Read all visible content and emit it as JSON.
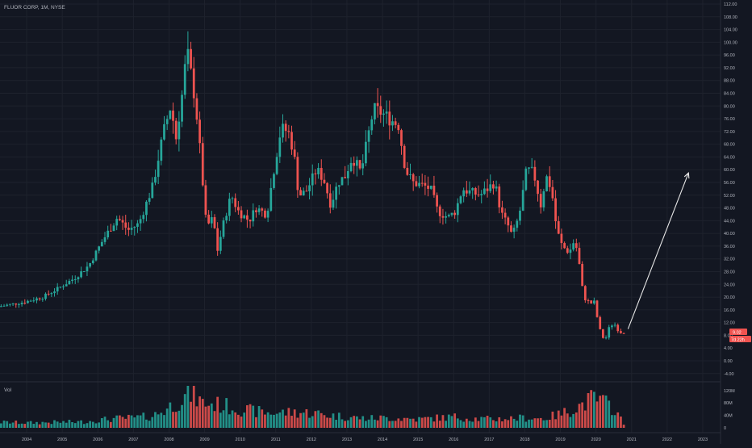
{
  "header": {
    "title": "FLUOR CORP, 1M, NYSE"
  },
  "volume_pane": {
    "label": "Vol",
    "ticks": [
      "120M",
      "80M",
      "40M",
      "0"
    ]
  },
  "price_badges": {
    "last": "9.02",
    "countdown": "7d 22h"
  },
  "colors": {
    "background": "#131722",
    "up": "#26a69a",
    "down": "#ef5350",
    "grid": "#1e222d",
    "text": "#b2b5be",
    "arrow": "#e6e6e6"
  },
  "chart_data": {
    "type": "candlestick",
    "title": "FLUOR CORP, 1M, NYSE",
    "interval": "1M",
    "exchange": "NYSE",
    "x_ticks": [
      "2004",
      "2005",
      "2006",
      "2007",
      "2008",
      "2009",
      "2010",
      "2011",
      "2012",
      "2013",
      "2014",
      "2015",
      "2016",
      "2017",
      "2018",
      "2019",
      "2020",
      "2021",
      "2022",
      "2023"
    ],
    "y_ticks": [
      "112.00",
      "108.00",
      "104.00",
      "100.00",
      "96.00",
      "92.00",
      "88.00",
      "84.00",
      "80.00",
      "76.00",
      "72.00",
      "68.00",
      "64.00",
      "60.00",
      "56.00",
      "52.00",
      "48.00",
      "44.00",
      "40.00",
      "36.00",
      "32.00",
      "28.00",
      "24.00",
      "20.00",
      "16.00",
      "12.00",
      "8.00",
      "4.00",
      "0.00",
      "-4.00"
    ],
    "y_range": [
      -6,
      112
    ],
    "x_range": [
      2003.25,
      2023.5
    ],
    "grid": true,
    "last_price": 9.02,
    "annotation_arrow": {
      "from": [
        2020.9,
        10
      ],
      "to": [
        2022.6,
        59
      ]
    },
    "price_path": [
      [
        2003.25,
        17
      ],
      [
        2004.0,
        18.5
      ],
      [
        2004.5,
        20
      ],
      [
        2004.9,
        22.5
      ],
      [
        2005.4,
        26
      ],
      [
        2005.8,
        30
      ],
      [
        2006.2,
        38
      ],
      [
        2006.6,
        45
      ],
      [
        2006.9,
        41
      ],
      [
        2007.2,
        43
      ],
      [
        2007.6,
        55
      ],
      [
        2007.9,
        72
      ],
      [
        2008.1,
        80
      ],
      [
        2008.25,
        70
      ],
      [
        2008.45,
        86
      ],
      [
        2008.55,
        98
      ],
      [
        2008.8,
        81
      ],
      [
        2009.0,
        56
      ],
      [
        2009.1,
        42
      ],
      [
        2009.3,
        45
      ],
      [
        2009.4,
        34
      ],
      [
        2009.6,
        44
      ],
      [
        2009.8,
        52
      ],
      [
        2010.0,
        47
      ],
      [
        2010.3,
        44
      ],
      [
        2010.5,
        48
      ],
      [
        2010.8,
        46
      ],
      [
        2011.0,
        60
      ],
      [
        2011.2,
        73
      ],
      [
        2011.4,
        72
      ],
      [
        2011.55,
        66
      ],
      [
        2011.7,
        52
      ],
      [
        2011.9,
        53
      ],
      [
        2012.2,
        60
      ],
      [
        2012.4,
        57
      ],
      [
        2012.6,
        49
      ],
      [
        2012.8,
        56
      ],
      [
        2013.0,
        58
      ],
      [
        2013.2,
        64
      ],
      [
        2013.45,
        59
      ],
      [
        2013.6,
        68
      ],
      [
        2013.8,
        79
      ],
      [
        2014.0,
        78
      ],
      [
        2014.25,
        76
      ],
      [
        2014.5,
        74
      ],
      [
        2014.7,
        60
      ],
      [
        2014.9,
        56
      ],
      [
        2015.2,
        55
      ],
      [
        2015.4,
        54
      ],
      [
        2015.6,
        47
      ],
      [
        2015.9,
        45
      ],
      [
        2016.1,
        47
      ],
      [
        2016.3,
        54
      ],
      [
        2016.5,
        53
      ],
      [
        2016.8,
        52
      ],
      [
        2017.0,
        54
      ],
      [
        2017.2,
        56
      ],
      [
        2017.4,
        46
      ],
      [
        2017.6,
        42
      ],
      [
        2017.7,
        39
      ],
      [
        2017.9,
        46
      ],
      [
        2018.1,
        60
      ],
      [
        2018.3,
        59
      ],
      [
        2018.5,
        49
      ],
      [
        2018.65,
        58
      ],
      [
        2018.8,
        54
      ],
      [
        2018.95,
        41
      ],
      [
        2019.1,
        36
      ],
      [
        2019.3,
        34
      ],
      [
        2019.45,
        38
      ],
      [
        2019.55,
        33
      ],
      [
        2019.7,
        20
      ],
      [
        2019.9,
        18
      ],
      [
        2020.0,
        18.5
      ],
      [
        2020.15,
        10
      ],
      [
        2020.3,
        6
      ],
      [
        2020.4,
        10
      ],
      [
        2020.55,
        12
      ],
      [
        2020.65,
        10
      ],
      [
        2020.75,
        9
      ]
    ],
    "volume_path": [
      [
        2003.25,
        18
      ],
      [
        2004.0,
        16
      ],
      [
        2004.8,
        18
      ],
      [
        2005.5,
        19
      ],
      [
        2006.0,
        25
      ],
      [
        2006.5,
        30
      ],
      [
        2007.0,
        32
      ],
      [
        2007.5,
        38
      ],
      [
        2007.9,
        60
      ],
      [
        2008.2,
        85
      ],
      [
        2008.6,
        110
      ],
      [
        2008.9,
        80
      ],
      [
        2009.3,
        75
      ],
      [
        2009.8,
        65
      ],
      [
        2010.2,
        55
      ],
      [
        2010.8,
        48
      ],
      [
        2011.5,
        50
      ],
      [
        2012.0,
        48
      ],
      [
        2012.5,
        40
      ],
      [
        2013.0,
        35
      ],
      [
        2013.5,
        30
      ],
      [
        2014.0,
        32
      ],
      [
        2014.5,
        30
      ],
      [
        2015.0,
        28
      ],
      [
        2015.5,
        32
      ],
      [
        2016.0,
        35
      ],
      [
        2016.5,
        30
      ],
      [
        2017.0,
        28
      ],
      [
        2017.5,
        30
      ],
      [
        2018.0,
        32
      ],
      [
        2018.5,
        30
      ],
      [
        2019.0,
        45
      ],
      [
        2019.5,
        70
      ],
      [
        2019.9,
        95
      ],
      [
        2020.2,
        80
      ],
      [
        2020.5,
        62
      ],
      [
        2020.75,
        10
      ]
    ],
    "volume_range": [
      0,
      135
    ]
  }
}
